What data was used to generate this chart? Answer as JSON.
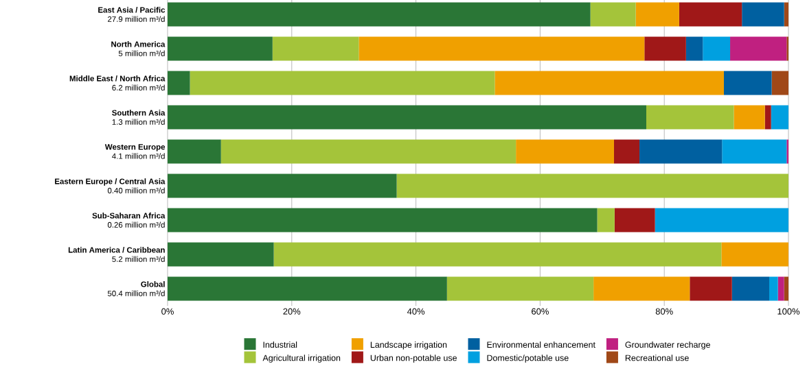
{
  "chart_data": {
    "type": "bar",
    "orientation": "horizontal",
    "stacked": true,
    "categories": [
      "**East Asia / Pacific**\n27.9 million m³/d",
      "**North America**\n5 million m³/d",
      "**Middle East / North Africa**\n6.2 million m³/d",
      "**Southern Asia**\n1.3 million m³/d",
      "**Western Europe**\n4.1 million m³/d",
      "**Eastern Europe / Central Asia**\n0.40 million m³/d",
      "**Sub-Saharan Africa**\n0.26 million m³/d",
      "**Latin America / Caribbean**\n5.2 million m³/d",
      "**Global**\n50.4 million m³/d"
    ],
    "series": [
      {
        "name": "Industrial",
        "color": "#2a7636",
        "values": [
          68.1,
          16.9,
          3.6,
          77.1,
          8.6,
          36.9,
          69.2,
          17.1,
          45.0
        ]
      },
      {
        "name": "Agricultural irrigation",
        "color": "#a4c43a",
        "values": [
          7.3,
          13.9,
          49.1,
          14.1,
          47.5,
          63.1,
          2.8,
          72.1,
          23.6
        ]
      },
      {
        "name": "Landscape irrigation",
        "color": "#f0a000",
        "values": [
          7.0,
          46.0,
          36.9,
          5.0,
          15.8,
          0,
          0,
          10.8,
          15.5
        ]
      },
      {
        "name": "Urban non-potable use",
        "color": "#a01818",
        "values": [
          10.1,
          6.7,
          0,
          1.0,
          4.1,
          0,
          6.5,
          0,
          6.8
        ]
      },
      {
        "name": "Environmental enhancement",
        "color": "#0060a0",
        "values": [
          6.8,
          2.7,
          7.7,
          0,
          13.3,
          0,
          0,
          0,
          6.0
        ]
      },
      {
        "name": "Domestic/potable use",
        "color": "#00a0e0",
        "values": [
          0,
          4.4,
          0,
          2.8,
          10.4,
          0,
          21.5,
          0,
          1.4
        ]
      },
      {
        "name": "Groundwater recharge",
        "color": "#c02080",
        "values": [
          0,
          9.1,
          0,
          0,
          0.3,
          0,
          0,
          0,
          1.0
        ]
      },
      {
        "name": "Recreational use",
        "color": "#a04818",
        "values": [
          0.7,
          0.3,
          2.7,
          0,
          0,
          0,
          0,
          0,
          0.7
        ]
      }
    ],
    "xlim": [
      0,
      100
    ],
    "xticks": [
      {
        "value": 0,
        "label": "0%"
      },
      {
        "value": 20,
        "label": "20%"
      },
      {
        "value": 40,
        "label": "40%"
      },
      {
        "value": 60,
        "label": "60%"
      },
      {
        "value": 80,
        "label": "80%"
      },
      {
        "value": 100,
        "label": "100%"
      }
    ],
    "grid": "x",
    "legend": "bottom"
  }
}
